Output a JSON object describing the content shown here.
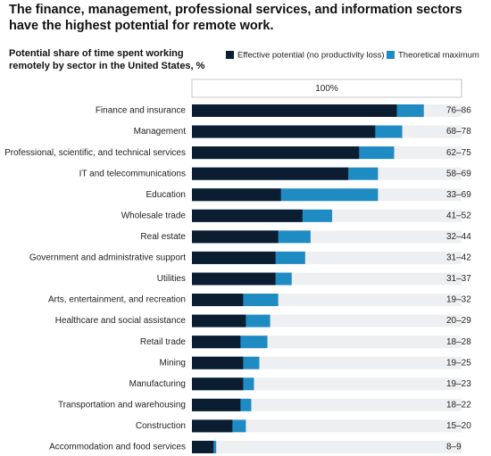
{
  "chart_data": {
    "type": "bar",
    "orientation": "horizontal",
    "title": "The finance, management, professional services, and information sectors have the highest potential for remote work.",
    "subtitle": "Potential share of time spent working remotely by sector in the United States, %",
    "categories": [
      "Finance and insurance",
      "Management",
      "Professional, scientific, and technical services",
      "IT and telecommunications",
      "Education",
      "Wholesale trade",
      "Real estate",
      "Government and administrative support",
      "Utilities",
      "Arts, entertainment, and recreation",
      "Healthcare and social assistance",
      "Retail trade",
      "Mining",
      "Manufacturing",
      "Transportation and warehousing",
      "Construction",
      "Accommodation and food services"
    ],
    "series": [
      {
        "name": "Theoretical maximum",
        "color": "#1f8bc3",
        "values": [
          86,
          78,
          75,
          69,
          69,
          52,
          44,
          42,
          37,
          32,
          29,
          28,
          25,
          23,
          22,
          20,
          9
        ]
      },
      {
        "name": "Effective potential (no productivity loss)",
        "color": "#0b1d30",
        "values": [
          76,
          68,
          62,
          58,
          33,
          41,
          32,
          31,
          31,
          19,
          20,
          18,
          19,
          19,
          18,
          15,
          8
        ]
      }
    ],
    "range_labels": [
      "76–86",
      "68–78",
      "62–75",
      "58–69",
      "33–69",
      "41–52",
      "32–44",
      "31–42",
      "31–37",
      "19–32",
      "20–29",
      "18–28",
      "19–25",
      "19–23",
      "18–22",
      "15–20",
      "8–9"
    ],
    "xlim": [
      0,
      100
    ],
    "xticks": [
      {
        "value": 100,
        "label": "100%"
      }
    ]
  }
}
